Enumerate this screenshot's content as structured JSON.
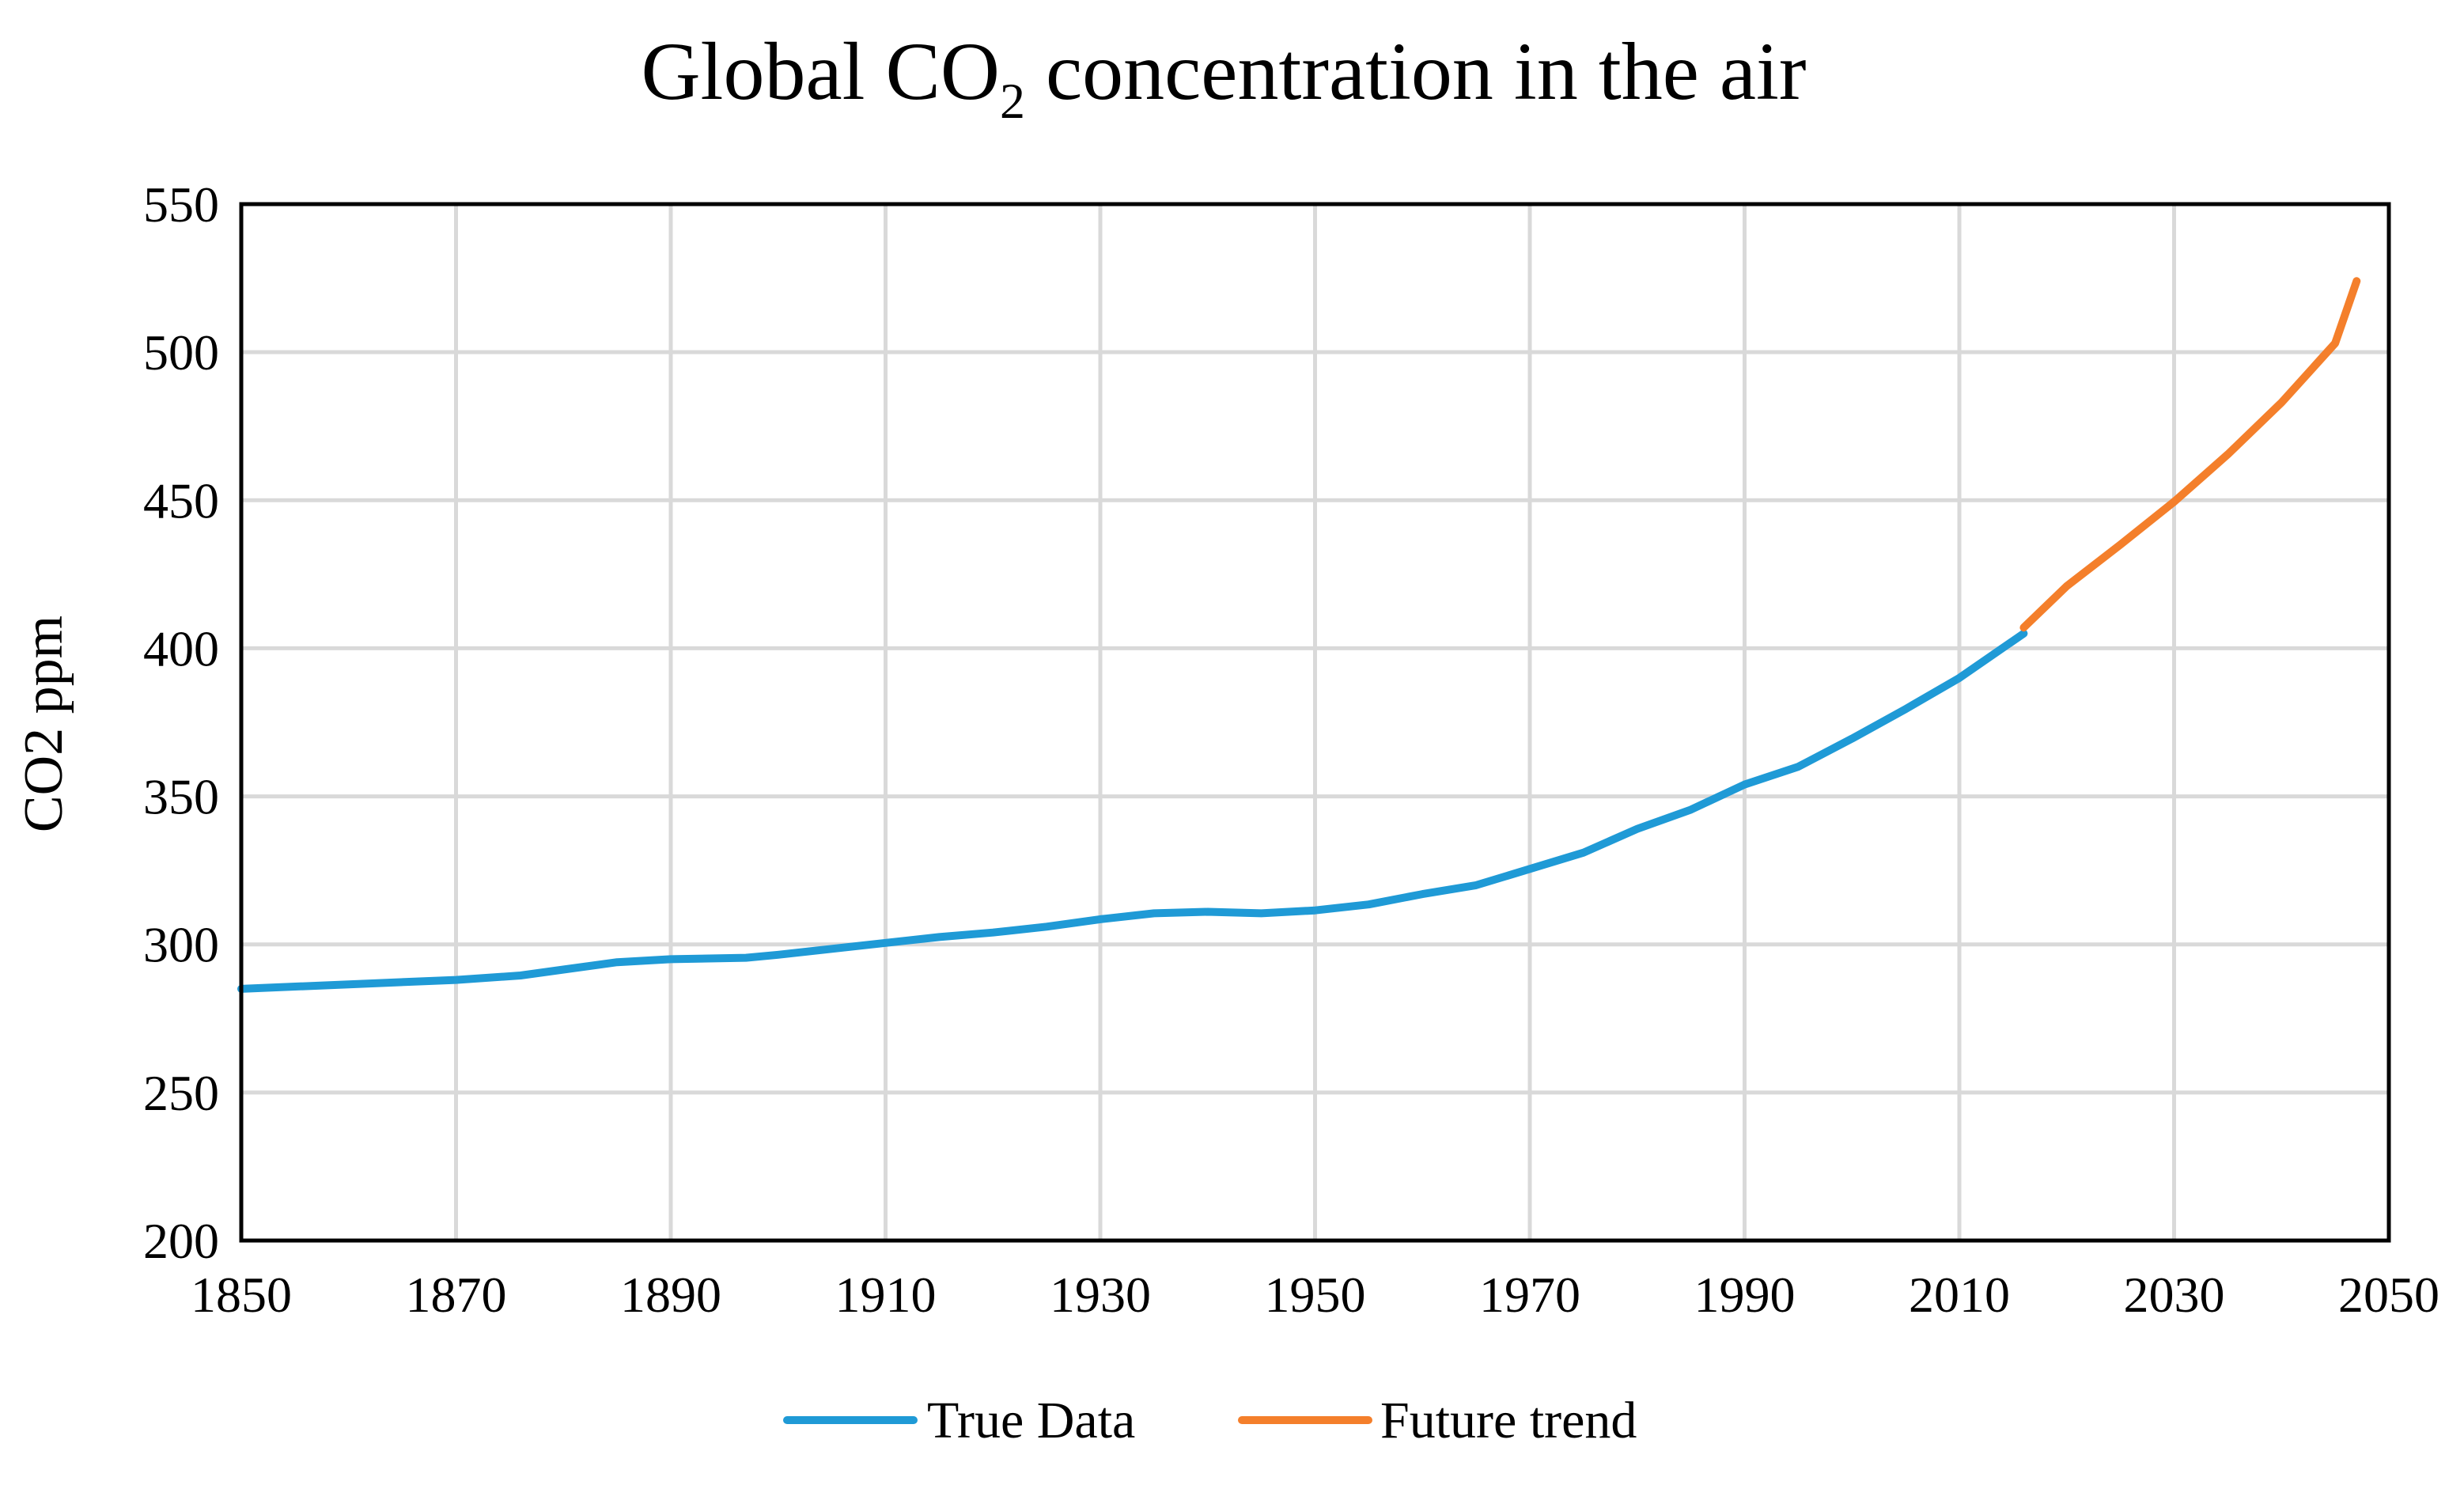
{
  "chart_data": {
    "type": "line",
    "title": {
      "prefix": "Global CO",
      "subscript": "2",
      "suffix": " concentration in the air"
    },
    "xlabel": "",
    "ylabel": "CO2 ppm",
    "xlim": [
      1850,
      2050
    ],
    "ylim": [
      200,
      550
    ],
    "x_ticks": [
      1850,
      1870,
      1890,
      1910,
      1930,
      1950,
      1970,
      1990,
      2010,
      2030,
      2050
    ],
    "y_ticks": [
      200,
      250,
      300,
      350,
      400,
      450,
      500,
      550
    ],
    "grid": true,
    "legend_position": "bottom-center",
    "series": [
      {
        "name": "True Data",
        "color": "#1f9ad6",
        "x": [
          1850,
          1860,
          1870,
          1876,
          1880,
          1885,
          1890,
          1897,
          1900,
          1905,
          1910,
          1915,
          1920,
          1925,
          1930,
          1935,
          1940,
          1945,
          1950,
          1955,
          1960,
          1965,
          1970,
          1975,
          1980,
          1985,
          1990,
          1995,
          2000,
          2005,
          2010,
          2016
        ],
        "values": [
          285,
          286.5,
          288,
          289.5,
          291.5,
          294,
          295,
          295.5,
          296.5,
          298.5,
          300.5,
          302.5,
          304,
          306,
          308.5,
          310.5,
          311,
          310.5,
          311.5,
          313.5,
          317,
          320,
          325.5,
          331,
          339,
          345.5,
          354,
          360,
          369.5,
          379.5,
          390,
          405
        ]
      },
      {
        "name": "Future trend",
        "color": "#f47f2b",
        "x": [
          2016,
          2020,
          2025,
          2030,
          2035,
          2040,
          2045,
          2047
        ],
        "values": [
          407,
          421,
          435,
          449.5,
          465.5,
          483,
          503,
          524
        ]
      }
    ]
  }
}
